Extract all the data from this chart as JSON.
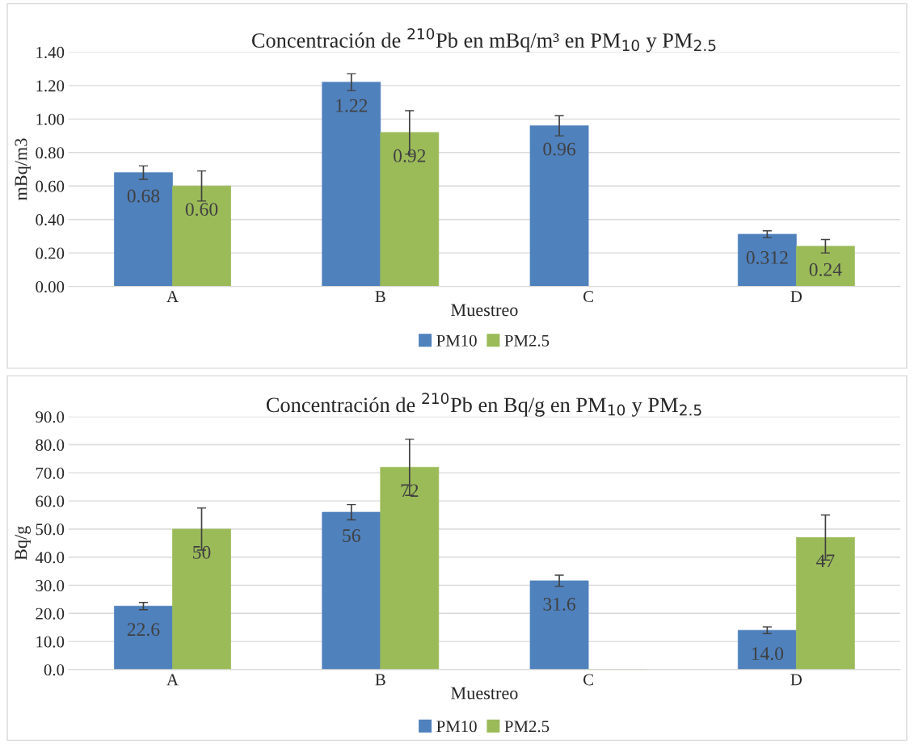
{
  "chart_data": [
    {
      "type": "bar",
      "title": "Concentración de $^{210}$Pb en mBq/m³ en PM$_{10}$ y PM$_{2.5}$",
      "xlabel": "Muestreo",
      "ylabel": "mBq/m3",
      "categories": [
        "A",
        "B",
        "C",
        "D"
      ],
      "series": [
        {
          "name": "PM10",
          "color": "#4f81bd",
          "values": [
            0.68,
            1.22,
            0.96,
            0.312
          ],
          "errors": [
            0.04,
            0.05,
            0.06,
            0.02
          ],
          "value_labels": [
            "0.68",
            "1.22",
            "0.96",
            "0.312"
          ]
        },
        {
          "name": "PM2.5",
          "color": "#9bbb59",
          "values": [
            0.6,
            0.92,
            0,
            0.24
          ],
          "errors": [
            0.09,
            0.13,
            null,
            0.04
          ],
          "value_labels": [
            "0.60",
            "0.92",
            null,
            "0.24"
          ]
        }
      ],
      "ylim": [
        0,
        1.4
      ],
      "yticks": [
        {
          "value": 0,
          "label": "0.00"
        },
        {
          "value": 0.2,
          "label": "0.20"
        },
        {
          "value": 0.4,
          "label": "0.40"
        },
        {
          "value": 0.6,
          "label": "0.60"
        },
        {
          "value": 0.8,
          "label": "0.80"
        },
        {
          "value": 1.0,
          "label": "1.00"
        },
        {
          "value": 1.2,
          "label": "1.20"
        },
        {
          "value": 1.4,
          "label": "1.40"
        }
      ],
      "grid": "y",
      "legend": "bottom"
    },
    {
      "type": "bar",
      "title": "Concentración de $^{210}$Pb en Bq/g en PM$_{10}$ y PM$_{2.5}$",
      "xlabel": "Muestreo",
      "ylabel": "Bq/g",
      "categories": [
        "A",
        "B",
        "C",
        "D"
      ],
      "series": [
        {
          "name": "PM10",
          "color": "#4f81bd",
          "values": [
            22.6,
            56,
            31.6,
            14.0
          ],
          "errors": [
            1.3,
            2.7,
            2,
            1.2
          ],
          "value_labels": [
            "22.6",
            "56",
            "31.6",
            "14.0"
          ]
        },
        {
          "name": "PM2.5",
          "color": "#9bbb59",
          "values": [
            50,
            72,
            0,
            47
          ],
          "errors": [
            7.5,
            10,
            null,
            8
          ],
          "value_labels": [
            "50",
            "72",
            null,
            "47"
          ]
        }
      ],
      "ylim": [
        0,
        90
      ],
      "yticks": [
        {
          "value": 0,
          "label": "0.0"
        },
        {
          "value": 10,
          "label": "10.0"
        },
        {
          "value": 20,
          "label": "20.0"
        },
        {
          "value": 30,
          "label": "30.0"
        },
        {
          "value": 40,
          "label": "40.0"
        },
        {
          "value": 50,
          "label": "50.0"
        },
        {
          "value": 60,
          "label": "60.0"
        },
        {
          "value": 70,
          "label": "70.0"
        },
        {
          "value": 80,
          "label": "80.0"
        },
        {
          "value": 90,
          "label": "90.0"
        }
      ],
      "grid": "y",
      "legend": "bottom"
    }
  ]
}
